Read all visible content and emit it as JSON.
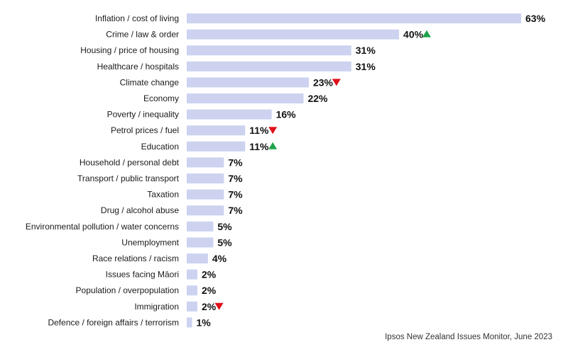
{
  "chart_data": {
    "type": "bar",
    "orientation": "horizontal",
    "categories": [
      "Inflation / cost of living",
      "Crime / law & order",
      "Housing / price of housing",
      "Healthcare / hospitals",
      "Climate change",
      "Economy",
      "Poverty / inequality",
      "Petrol prices / fuel",
      "Education",
      "Household / personal debt",
      "Transport / public transport",
      "Taxation",
      "Drug / alcohol abuse",
      "Environmental pollution / water concerns",
      "Unemployment",
      "Race relations / racism",
      "Issues facing Māori",
      "Population / overpopulation",
      "Immigration",
      "Defence / foreign affairs / terrorism"
    ],
    "values": [
      63,
      40,
      31,
      31,
      23,
      22,
      16,
      11,
      11,
      7,
      7,
      7,
      7,
      5,
      5,
      4,
      2,
      2,
      2,
      1
    ],
    "value_labels": [
      "63%",
      "40%",
      "31%",
      "31%",
      "23%",
      "22%",
      "16%",
      "11%",
      "11%",
      "7%",
      "7%",
      "7%",
      "7%",
      "5%",
      "5%",
      "4%",
      "2%",
      "2%",
      "2%",
      "1%"
    ],
    "trend": [
      "",
      "up",
      "",
      "",
      "down",
      "",
      "",
      "down",
      "up",
      "",
      "",
      "",
      "",
      "",
      "",
      "",
      "",
      "",
      "down",
      ""
    ],
    "xlim": [
      0,
      63
    ],
    "grid": false,
    "colors": {
      "bar": "#cdd2f0",
      "up_arrow": "#1fa34a",
      "down_arrow": "#e0101a"
    }
  },
  "source_note": "Ipsos New Zealand Issues Monitor, June 2023"
}
